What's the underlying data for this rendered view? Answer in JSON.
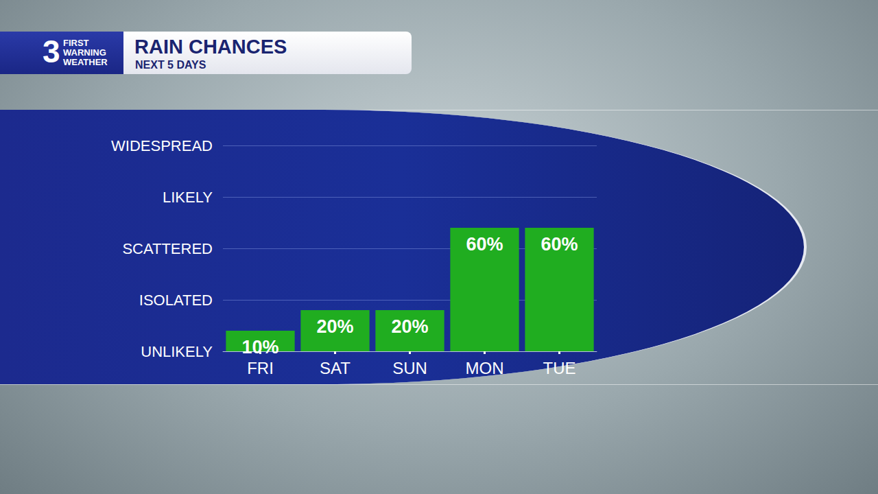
{
  "chart_data": {
    "type": "bar",
    "title": "RAIN CHANCES",
    "subtitle": "NEXT 5 DAYS",
    "logo": [
      "3",
      "FIRST",
      "WARNING",
      "WEATHER"
    ],
    "categories": [
      "FRI",
      "SAT",
      "SUN",
      "MON",
      "TUE"
    ],
    "values": [
      10,
      20,
      20,
      60,
      60
    ],
    "value_labels": [
      "10%",
      "20%",
      "20%",
      "60%",
      "60%"
    ],
    "color": "#20ad20",
    "ylim": [
      0,
      100
    ],
    "yticks": [
      {
        "value": 0,
        "label": "UNLIKELY"
      },
      {
        "value": 25,
        "label": "ISOLATED"
      },
      {
        "value": 50,
        "label": "SCATTERED"
      },
      {
        "value": 75,
        "label": "LIKELY"
      },
      {
        "value": 100,
        "label": "WIDESPREAD"
      }
    ],
    "grid": true,
    "data_labels": true
  }
}
